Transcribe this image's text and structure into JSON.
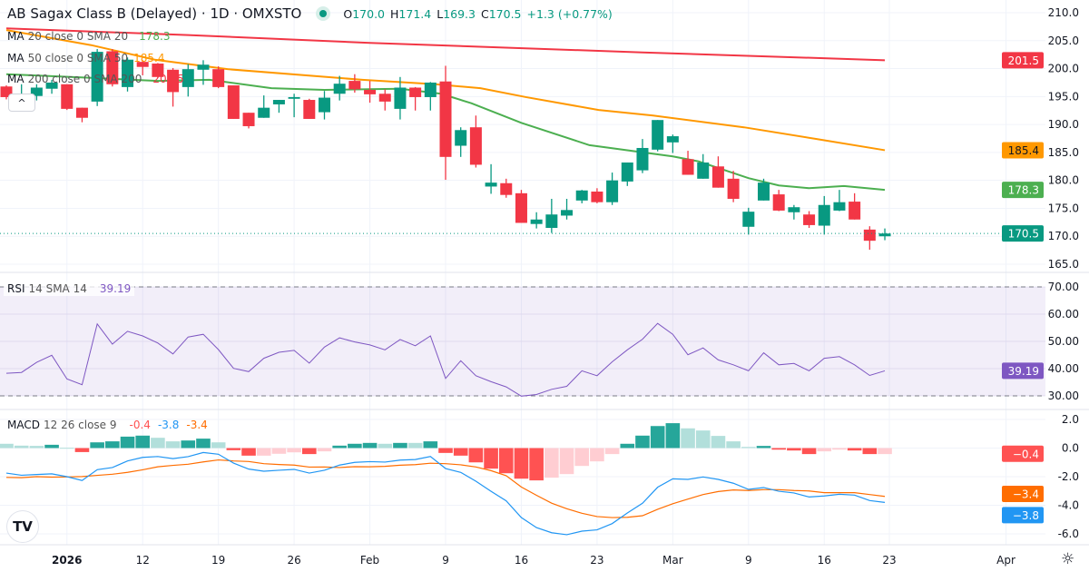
{
  "header": {
    "title": "AB Sagax Class B (Delayed) · 1D · OMXSTO",
    "status_icon": "market-status-dot",
    "ohlc": {
      "o_label": "O",
      "o": "170.0",
      "h_label": "H",
      "h": "171.4",
      "l_label": "L",
      "l": "169.3",
      "c_label": "C",
      "c": "170.5",
      "change": "+1.3 (+0.77%)"
    }
  },
  "legend": {
    "ma20": {
      "label": "MA",
      "params": "20 close 0 SMA 20",
      "value": "178.3"
    },
    "ma50": {
      "label": "MA",
      "params": "50 close 0 SMA 50",
      "value": "185.4"
    },
    "ma200": {
      "label": "MA",
      "params": "200 close 0 SMA 200",
      "value": "201.5"
    },
    "rsi": {
      "label": "RSI",
      "params": "14 SMA 14",
      "value": "39.19"
    },
    "macd": {
      "label": "MACD",
      "params": "12 26 close 9",
      "hist": "-0.4",
      "macd": "-3.8",
      "signal": "-3.4"
    }
  },
  "colors": {
    "up": "#089981",
    "down": "#f23645",
    "ma20": "#4caf50",
    "ma50": "#ff9800",
    "ma200": "#f23645",
    "rsi": "#7e57c2",
    "macd": "#2196f3",
    "signal": "#ff6d00",
    "hist_up_strong": "#26a69a",
    "hist_up_weak": "#b2dfdb",
    "hist_down_strong": "#ff5252",
    "hist_down_weak": "#ffcdd2"
  },
  "icons": {
    "collapse": "chevron-up-icon",
    "logo": "tradingview-logo",
    "settings": "gear-icon"
  },
  "logo_text": "TV",
  "collapse_glyph": "^",
  "gear_glyph": "☼",
  "chart_data": [
    {
      "type": "candlestick",
      "pane": "price",
      "ylim": [
        165,
        210
      ],
      "y_ticks": [
        "210.0",
        "205.0",
        "200.0",
        "195.0",
        "190.0",
        "185.0",
        "180.0",
        "175.0",
        "170.0",
        "165.0"
      ],
      "ohlc": [
        [
          196.8,
          197.0,
          194.5,
          194.9
        ],
        [
          195.0,
          197.2,
          194.8,
          195.5
        ],
        [
          195.1,
          197.2,
          194.3,
          196.6
        ],
        [
          196.4,
          198.0,
          195.5,
          197.5
        ],
        [
          197.2,
          197.2,
          192.6,
          192.8
        ],
        [
          193.0,
          193.0,
          190.4,
          191.2
        ],
        [
          194.1,
          203.5,
          193.3,
          203.0
        ],
        [
          203.1,
          203.5,
          196.8,
          197.2
        ],
        [
          196.7,
          202.0,
          195.9,
          201.6
        ],
        [
          201.2,
          201.5,
          198.8,
          200.3
        ],
        [
          200.9,
          201.0,
          198.3,
          198.5
        ],
        [
          199.8,
          200.1,
          193.2,
          195.8
        ],
        [
          196.7,
          200.8,
          195.0,
          199.9
        ],
        [
          199.8,
          201.5,
          197.1,
          200.7
        ],
        [
          199.9,
          200.4,
          196.5,
          196.7
        ],
        [
          197.0,
          197.0,
          191.0,
          191.0
        ],
        [
          192.1,
          192.1,
          189.3,
          189.7
        ],
        [
          191.2,
          195.2,
          191.2,
          193.0
        ],
        [
          193.6,
          194.4,
          192.1,
          194.4
        ],
        [
          194.6,
          195.5,
          191.3,
          194.9
        ],
        [
          194.4,
          194.6,
          191.0,
          191.0
        ],
        [
          192.2,
          196.0,
          190.9,
          194.8
        ],
        [
          195.5,
          198.7,
          194.3,
          197.3
        ],
        [
          197.8,
          199.0,
          195.7,
          196.3
        ],
        [
          196.2,
          197.8,
          193.9,
          195.4
        ],
        [
          195.5,
          196.3,
          192.5,
          194.1
        ],
        [
          192.8,
          198.5,
          190.9,
          196.6
        ],
        [
          196.6,
          196.7,
          192.5,
          194.9
        ],
        [
          194.9,
          197.6,
          192.5,
          197.5
        ],
        [
          197.7,
          200.5,
          180.1,
          184.2
        ],
        [
          186.2,
          189.5,
          184.2,
          189.0
        ],
        [
          189.5,
          191.6,
          182.3,
          182.8
        ],
        [
          178.9,
          182.9,
          177.6,
          179.6
        ],
        [
          179.5,
          180.3,
          176.9,
          177.4
        ],
        [
          177.7,
          178.3,
          172.4,
          172.4
        ],
        [
          172.2,
          174.3,
          171.4,
          173.0
        ],
        [
          171.5,
          176.7,
          170.6,
          173.9
        ],
        [
          173.7,
          176.7,
          173.0,
          174.7
        ],
        [
          176.4,
          178.3,
          175.9,
          178.2
        ],
        [
          178.0,
          178.6,
          175.9,
          176.1
        ],
        [
          176.1,
          181.4,
          175.6,
          180.0
        ],
        [
          179.8,
          183.2,
          179.0,
          183.2
        ],
        [
          181.8,
          187.4,
          181.3,
          185.8
        ],
        [
          185.5,
          190.8,
          185.2,
          190.8
        ],
        [
          186.8,
          188.2,
          184.9,
          187.9
        ],
        [
          183.8,
          185.3,
          181.0,
          181.0
        ],
        [
          180.3,
          184.7,
          180.3,
          183.2
        ],
        [
          182.5,
          184.3,
          178.7,
          178.7
        ],
        [
          180.3,
          181.7,
          176.1,
          176.7
        ],
        [
          171.7,
          175.1,
          170.3,
          174.4
        ],
        [
          176.4,
          180.3,
          176.4,
          179.6
        ],
        [
          177.5,
          178.3,
          174.5,
          174.6
        ],
        [
          174.3,
          175.6,
          173.0,
          175.2
        ],
        [
          173.9,
          174.5,
          171.5,
          172.0
        ],
        [
          171.9,
          177.2,
          170.3,
          175.6
        ],
        [
          174.6,
          178.3,
          174.5,
          176.1
        ],
        [
          176.2,
          177.7,
          173.0,
          173.0
        ],
        [
          171.2,
          171.8,
          167.6,
          169.2
        ],
        [
          170.0,
          171.4,
          169.3,
          170.5
        ]
      ],
      "ma20": [
        [
          0,
          199.0
        ],
        [
          6,
          198.3
        ],
        [
          10,
          197.8
        ],
        [
          13.4,
          198.0
        ],
        [
          17.5,
          196.5
        ],
        [
          21,
          196.2
        ],
        [
          26,
          196.4
        ],
        [
          28.7,
          195.5
        ],
        [
          30.7,
          193.8
        ],
        [
          34,
          190.3
        ],
        [
          38.5,
          186.3
        ],
        [
          44,
          184.3
        ],
        [
          45.7,
          183.4
        ],
        [
          49,
          180.4
        ],
        [
          51,
          179.1
        ],
        [
          53,
          178.6
        ],
        [
          55.3,
          179.0
        ],
        [
          58,
          178.3
        ]
      ],
      "ma50": [
        [
          0,
          206.9
        ],
        [
          5.6,
          204.2
        ],
        [
          9.8,
          201.6
        ],
        [
          14.6,
          199.9
        ],
        [
          23.5,
          198.0
        ],
        [
          28.3,
          197.2
        ],
        [
          31.3,
          196.5
        ],
        [
          34.3,
          194.9
        ],
        [
          39.1,
          192.6
        ],
        [
          42.7,
          191.6
        ],
        [
          48.7,
          189.5
        ],
        [
          53.5,
          187.4
        ],
        [
          58,
          185.4
        ]
      ],
      "ma200": [
        [
          0,
          207.2
        ],
        [
          12,
          206.0
        ],
        [
          24,
          204.6
        ],
        [
          42,
          202.9
        ],
        [
          58,
          201.5
        ]
      ],
      "last_price": "170.5",
      "badges": [
        {
          "value": "201.5",
          "color": "#f23645"
        },
        {
          "value": "185.4",
          "color": "#ff9800"
        },
        {
          "value": "178.3",
          "color": "#4caf50"
        },
        {
          "value": "170.5",
          "color": "#089981"
        }
      ]
    },
    {
      "type": "line",
      "pane": "rsi",
      "ylim": [
        30,
        70
      ],
      "bands": [
        30,
        70
      ],
      "y_ticks": [
        "70.00",
        "60.00",
        "50.00",
        "40.00",
        "30.00"
      ],
      "values": [
        38.3,
        38.6,
        42.3,
        44.9,
        36.2,
        34.1,
        56.4,
        49.0,
        53.7,
        52.0,
        49.4,
        45.4,
        51.6,
        52.6,
        47.0,
        40.1,
        38.9,
        43.8,
        46.0,
        46.7,
        42.0,
        47.9,
        51.3,
        49.8,
        48.7,
        46.9,
        50.7,
        48.4,
        52.0,
        36.4,
        42.9,
        37.4,
        35.2,
        33.3,
        29.9,
        30.5,
        32.4,
        33.5,
        39.2,
        37.4,
        42.5,
        46.9,
        50.8,
        56.6,
        52.6,
        45.1,
        47.6,
        43.2,
        41.4,
        39.2,
        45.8,
        41.4,
        41.9,
        39.2,
        43.8,
        44.4,
        41.4,
        37.5,
        39.19
      ],
      "badge": {
        "value": "39.19",
        "color": "#7e57c2"
      }
    },
    {
      "type": "bar+line",
      "pane": "macd",
      "ylim": [
        -6.5,
        2.5
      ],
      "y_ticks": [
        "2.0",
        "0.0",
        "-2.0",
        "-4.0",
        "-6.0"
      ],
      "histogram": [
        0.3,
        0.17,
        0.15,
        0.23,
        0.02,
        -0.28,
        0.4,
        0.47,
        0.8,
        0.87,
        0.72,
        0.47,
        0.53,
        0.66,
        0.4,
        -0.15,
        -0.53,
        -0.53,
        -0.4,
        -0.3,
        -0.42,
        -0.23,
        0.17,
        0.3,
        0.36,
        0.3,
        0.36,
        0.36,
        0.47,
        -0.34,
        -0.53,
        -1.0,
        -1.44,
        -1.76,
        -2.14,
        -2.26,
        -2.07,
        -1.82,
        -1.25,
        -0.93,
        -0.42,
        0.3,
        0.87,
        1.54,
        1.74,
        1.38,
        1.23,
        0.85,
        0.47,
        0.08,
        0.15,
        -0.11,
        -0.17,
        -0.42,
        -0.23,
        -0.11,
        -0.17,
        -0.42,
        -0.42
      ],
      "macd": [
        -1.75,
        -1.9,
        -1.85,
        -1.8,
        -2.0,
        -2.27,
        -1.51,
        -1.36,
        -0.9,
        -0.65,
        -0.59,
        -0.74,
        -0.6,
        -0.31,
        -0.43,
        -1.05,
        -1.47,
        -1.62,
        -1.55,
        -1.49,
        -1.75,
        -1.55,
        -1.19,
        -1.0,
        -0.95,
        -0.98,
        -0.84,
        -0.8,
        -0.59,
        -1.43,
        -1.7,
        -2.32,
        -3.02,
        -3.69,
        -4.86,
        -5.56,
        -5.92,
        -6.06,
        -5.81,
        -5.72,
        -5.28,
        -4.54,
        -3.86,
        -2.74,
        -2.15,
        -2.19,
        -2.02,
        -2.19,
        -2.46,
        -2.89,
        -2.76,
        -3.02,
        -3.14,
        -3.42,
        -3.35,
        -3.23,
        -3.29,
        -3.67,
        -3.8
      ],
      "signal": [
        -2.05,
        -2.07,
        -2.0,
        -2.03,
        -2.02,
        -1.99,
        -1.91,
        -1.83,
        -1.7,
        -1.52,
        -1.31,
        -1.21,
        -1.13,
        -0.97,
        -0.83,
        -0.9,
        -0.94,
        -1.09,
        -1.15,
        -1.19,
        -1.33,
        -1.32,
        -1.36,
        -1.3,
        -1.31,
        -1.28,
        -1.2,
        -1.16,
        -1.06,
        -1.09,
        -1.17,
        -1.32,
        -1.58,
        -1.93,
        -2.72,
        -3.3,
        -3.85,
        -4.24,
        -4.56,
        -4.79,
        -4.86,
        -4.84,
        -4.73,
        -4.28,
        -3.89,
        -3.57,
        -3.25,
        -3.04,
        -2.93,
        -2.97,
        -2.91,
        -2.91,
        -2.97,
        -3.0,
        -3.12,
        -3.12,
        -3.12,
        -3.25,
        -3.38
      ],
      "badges": [
        {
          "value": "-0.4",
          "color": "#ff5252"
        },
        {
          "value": "-3.4",
          "color": "#ff6d00"
        },
        {
          "value": "-3.8",
          "color": "#2196f3"
        }
      ]
    }
  ],
  "x_axis": {
    "labels": [
      {
        "text": "2026",
        "index": 4,
        "bold": true
      },
      {
        "text": "12",
        "index": 9
      },
      {
        "text": "19",
        "index": 14
      },
      {
        "text": "26",
        "index": 19
      },
      {
        "text": "Feb",
        "index": 24
      },
      {
        "text": "9",
        "index": 29
      },
      {
        "text": "16",
        "index": 34
      },
      {
        "text": "23",
        "index": 39
      },
      {
        "text": "Mar",
        "index": 44
      },
      {
        "text": "9",
        "index": 49
      },
      {
        "text": "16",
        "index": 54
      },
      {
        "text": "23",
        "index": 58.3
      },
      {
        "text": "Apr",
        "index": 66
      }
    ]
  }
}
